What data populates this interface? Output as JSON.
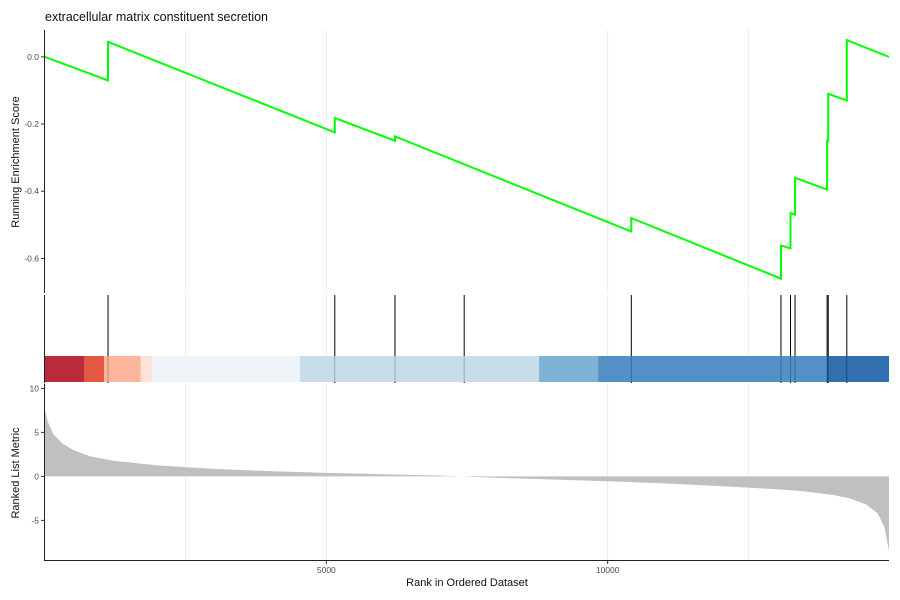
{
  "chart_data": {
    "type": "line",
    "title": "extracellular matrix constituent secretion",
    "x_range": [
      0,
      15000
    ],
    "x_ticks": [
      5000,
      10000
    ],
    "xlabel": "Rank in Ordered Dataset",
    "es_panel": {
      "ylabel": "Running Enrichment Score",
      "ylim": [
        -0.7,
        0.08
      ],
      "y_ticks": [
        0.0,
        -0.2,
        -0.4,
        -0.6
      ],
      "line_color": "#00ff00",
      "points": [
        [
          0,
          0.0
        ],
        [
          1120,
          -0.07
        ],
        [
          1120,
          0.045
        ],
        [
          5150,
          -0.225
        ],
        [
          5150,
          -0.182
        ],
        [
          6220,
          -0.25
        ],
        [
          6220,
          -0.237
        ],
        [
          10420,
          -0.52
        ],
        [
          10420,
          -0.48
        ],
        [
          13080,
          -0.66
        ],
        [
          13080,
          -0.562
        ],
        [
          13250,
          -0.57
        ],
        [
          13250,
          -0.465
        ],
        [
          13330,
          -0.47
        ],
        [
          13330,
          -0.36
        ],
        [
          13900,
          -0.395
        ],
        [
          13900,
          -0.25
        ],
        [
          13920,
          -0.25
        ],
        [
          13920,
          -0.11
        ],
        [
          14250,
          -0.13
        ],
        [
          14250,
          0.05
        ],
        [
          15000,
          0.0
        ]
      ]
    },
    "hits": [
      1120,
      5150,
      6220,
      7450,
      10420,
      13080,
      13250,
      13330,
      13900,
      13920,
      14250
    ],
    "color_bar": [
      {
        "from": 0,
        "to": 700,
        "color": "#b2182b"
      },
      {
        "from": 700,
        "to": 1050,
        "color": "#e34a33"
      },
      {
        "from": 1050,
        "to": 1700,
        "color": "#fcae91"
      },
      {
        "from": 1700,
        "to": 1900,
        "color": "#fde0d2"
      },
      {
        "from": 1900,
        "to": 4530,
        "color": "#eef3fb"
      },
      {
        "from": 4530,
        "to": 8780,
        "color": "#c3dae8"
      },
      {
        "from": 8780,
        "to": 9830,
        "color": "#74add3"
      },
      {
        "from": 9830,
        "to": 13900,
        "color": "#4387c0"
      },
      {
        "from": 13900,
        "to": 15000,
        "color": "#2163a7"
      }
    ],
    "metric_panel": {
      "ylabel": "Ranked List Metric",
      "ylim": [
        -9.5,
        10.5
      ],
      "y_ticks": [
        10,
        5,
        0,
        -5
      ],
      "fill_color": "#c0c0c0",
      "points": [
        [
          0,
          7.5
        ],
        [
          50,
          6.2
        ],
        [
          150,
          4.8
        ],
        [
          300,
          3.8
        ],
        [
          500,
          3.0
        ],
        [
          800,
          2.3
        ],
        [
          1200,
          1.8
        ],
        [
          2000,
          1.25
        ],
        [
          3000,
          0.85
        ],
        [
          4000,
          0.6
        ],
        [
          5000,
          0.4
        ],
        [
          6000,
          0.25
        ],
        [
          7000,
          0.1
        ],
        [
          7400,
          0.0
        ],
        [
          8000,
          -0.15
        ],
        [
          9000,
          -0.35
        ],
        [
          10000,
          -0.55
        ],
        [
          11000,
          -0.8
        ],
        [
          12000,
          -1.1
        ],
        [
          13000,
          -1.45
        ],
        [
          13500,
          -1.7
        ],
        [
          14000,
          -2.1
        ],
        [
          14300,
          -2.5
        ],
        [
          14600,
          -3.2
        ],
        [
          14800,
          -4.2
        ],
        [
          14920,
          -5.8
        ],
        [
          15000,
          -8.5
        ]
      ]
    }
  }
}
